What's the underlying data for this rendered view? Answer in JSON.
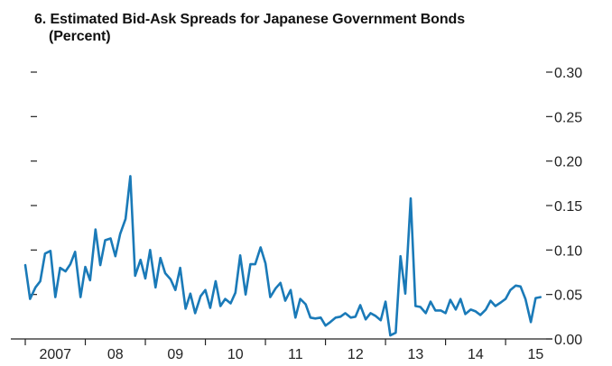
{
  "chart_data": {
    "type": "line",
    "title": "6. Estimated Bid-Ask Spreads for Japanese Government Bonds",
    "subtitle": "(Percent)",
    "xlabel": "",
    "ylabel": "",
    "x_tick_labels": [
      {
        "year": 2007,
        "label": "2007"
      },
      {
        "year": 2008,
        "label": "08"
      },
      {
        "year": 2009,
        "label": "09"
      },
      {
        "year": 2010,
        "label": "10"
      },
      {
        "year": 2011,
        "label": "11"
      },
      {
        "year": 2012,
        "label": "12"
      },
      {
        "year": 2013,
        "label": "13"
      },
      {
        "year": 2014,
        "label": "14"
      },
      {
        "year": 2015,
        "label": "15"
      }
    ],
    "xlim": [
      2007,
      2015.75
    ],
    "ylim": [
      0,
      0.3
    ],
    "y_ticks": [
      0.0,
      0.05,
      0.1,
      0.15,
      0.2,
      0.25,
      0.3
    ],
    "y_tick_labels": [
      "0.00",
      "0.05",
      "0.10",
      "0.15",
      "0.20",
      "0.25",
      "0.30"
    ],
    "y_axis_side": "right",
    "grid": false,
    "legend": "none",
    "line_color": "#1a7ab8",
    "series": [
      {
        "x": [
          2007.0,
          2007.08,
          2007.17,
          2007.25,
          2007.33,
          2007.42,
          2007.5,
          2007.58,
          2007.67,
          2007.75,
          2007.83,
          2007.92,
          2008.0,
          2008.08,
          2008.17,
          2008.25,
          2008.33,
          2008.42,
          2008.5,
          2008.58,
          2008.67,
          2008.75,
          2008.83,
          2008.92,
          2009.0,
          2009.08,
          2009.17,
          2009.25,
          2009.33,
          2009.42,
          2009.5,
          2009.58,
          2009.67,
          2009.75,
          2009.83,
          2009.92,
          2010.0,
          2010.08,
          2010.17,
          2010.25,
          2010.33,
          2010.42,
          2010.5,
          2010.58,
          2010.67,
          2010.75,
          2010.83,
          2010.92,
          2011.0,
          2011.08,
          2011.17,
          2011.25,
          2011.33,
          2011.42,
          2011.5,
          2011.58,
          2011.67,
          2011.75,
          2011.83,
          2011.92,
          2012.0,
          2012.08,
          2012.17,
          2012.25,
          2012.33,
          2012.42,
          2012.5,
          2012.58,
          2012.67,
          2012.75,
          2012.83,
          2012.92,
          2013.0,
          2013.08,
          2013.17,
          2013.25,
          2013.33,
          2013.42,
          2013.5,
          2013.58,
          2013.67,
          2013.75,
          2013.83,
          2013.92,
          2014.0,
          2014.08,
          2014.17,
          2014.25,
          2014.33,
          2014.42,
          2014.5,
          2014.58,
          2014.67,
          2014.75,
          2014.83,
          2014.92,
          2015.0,
          2015.08,
          2015.17,
          2015.25,
          2015.33,
          2015.42,
          2015.5,
          2015.58
        ],
        "values": [
          0.083,
          0.045,
          0.058,
          0.065,
          0.096,
          0.099,
          0.047,
          0.08,
          0.076,
          0.084,
          0.098,
          0.047,
          0.081,
          0.066,
          0.123,
          0.083,
          0.111,
          0.113,
          0.093,
          0.118,
          0.135,
          0.183,
          0.071,
          0.089,
          0.068,
          0.1,
          0.058,
          0.091,
          0.074,
          0.067,
          0.055,
          0.08,
          0.034,
          0.051,
          0.029,
          0.048,
          0.055,
          0.035,
          0.065,
          0.037,
          0.045,
          0.04,
          0.052,
          0.094,
          0.05,
          0.084,
          0.084,
          0.103,
          0.085,
          0.047,
          0.057,
          0.063,
          0.043,
          0.055,
          0.024,
          0.045,
          0.039,
          0.024,
          0.023,
          0.024,
          0.015,
          0.019,
          0.024,
          0.025,
          0.029,
          0.024,
          0.025,
          0.038,
          0.022,
          0.029,
          0.026,
          0.021,
          0.042,
          0.004,
          0.007,
          0.093,
          0.051,
          0.158,
          0.037,
          0.036,
          0.029,
          0.042,
          0.032,
          0.032,
          0.029,
          0.044,
          0.033,
          0.045,
          0.028,
          0.033,
          0.031,
          0.027,
          0.033,
          0.043,
          0.037,
          0.041,
          0.045,
          0.055,
          0.06,
          0.059,
          0.045,
          0.019,
          0.046,
          0.047
        ]
      }
    ]
  }
}
